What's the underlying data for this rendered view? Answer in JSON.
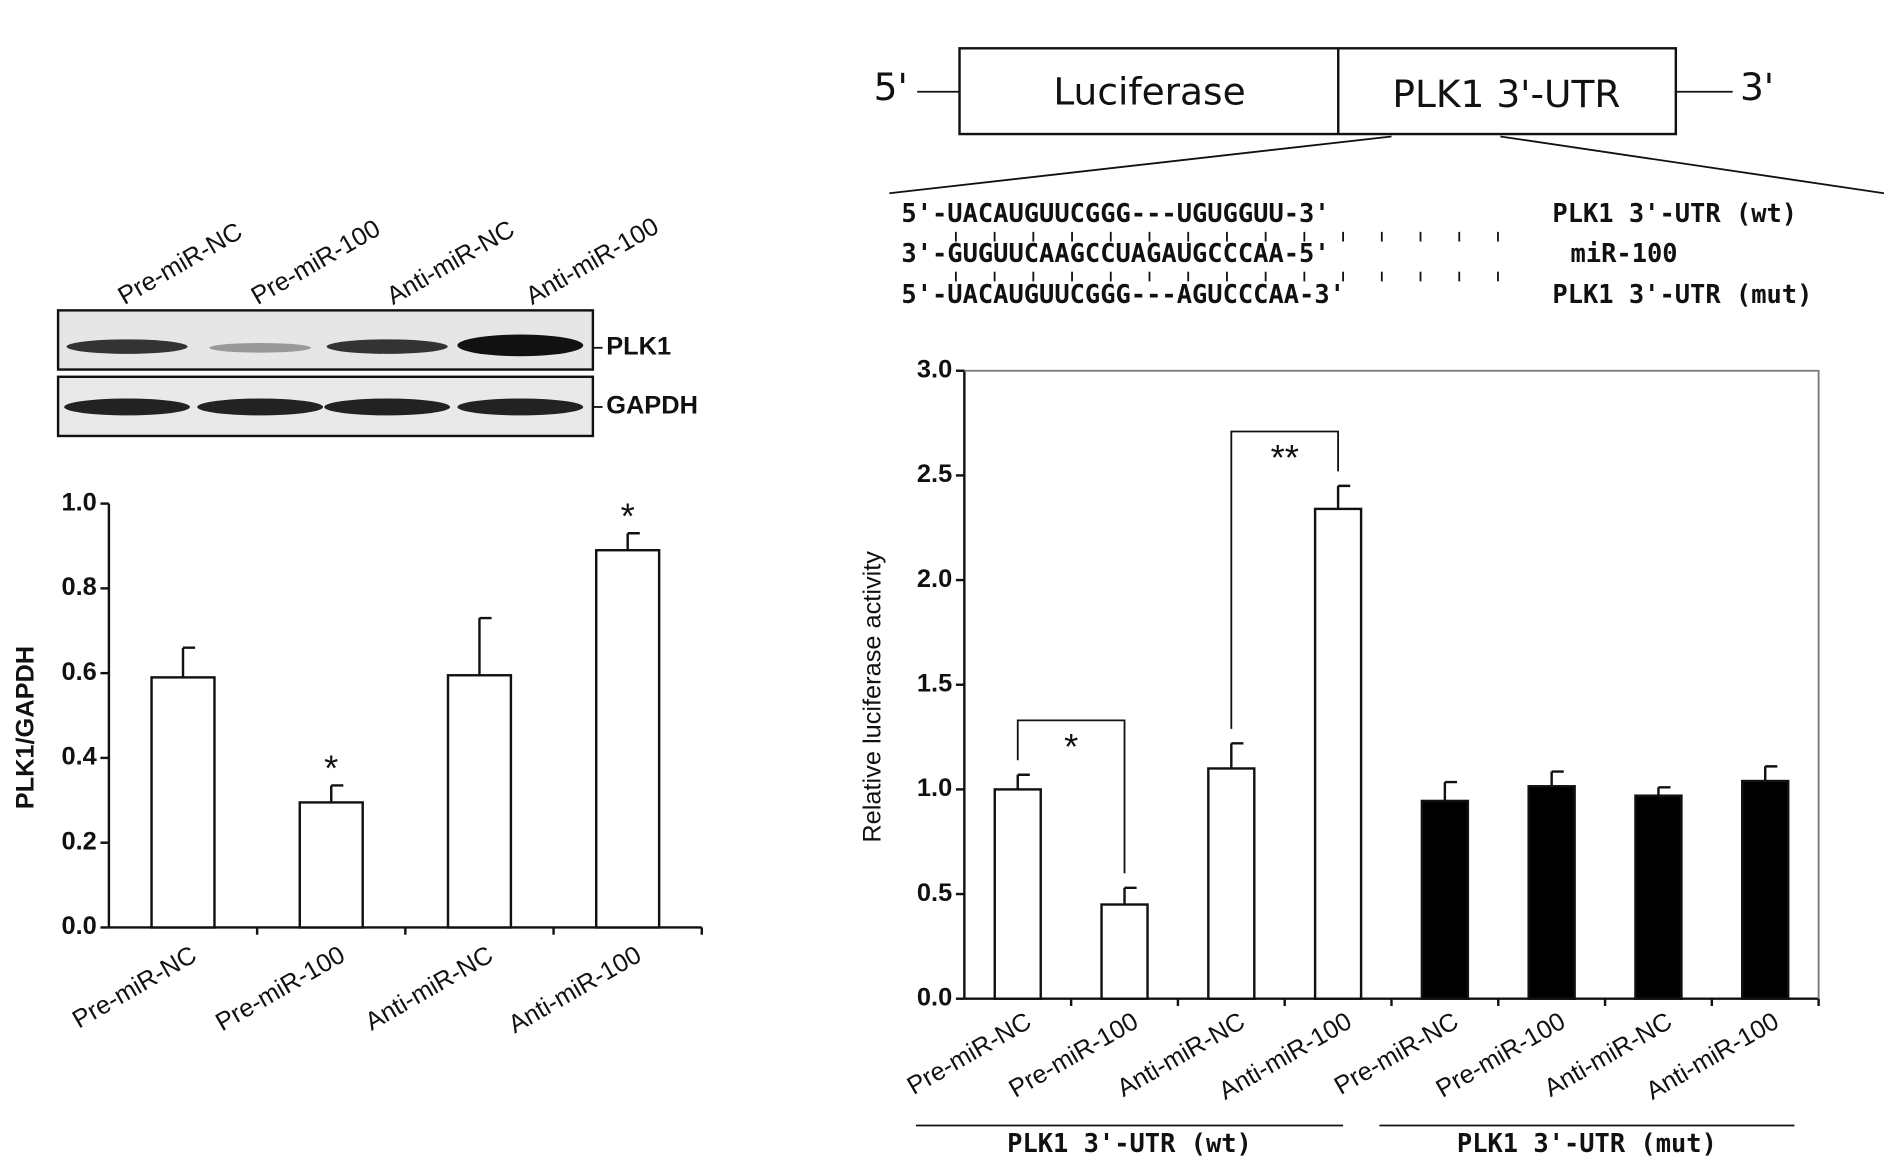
{
  "chart_data": [
    {
      "type": "bar",
      "ylabel": "PLK1/GAPDH",
      "categories": [
        "Pre-miR-NC",
        "Pre-miR-100",
        "Anti-miR-NC",
        "Anti-miR-100"
      ],
      "values": [
        0.59,
        0.295,
        0.595,
        0.89
      ],
      "errors": [
        0.07,
        0.04,
        0.135,
        0.04
      ],
      "colors": [
        "#ffffff",
        "#ffffff",
        "#ffffff",
        "#ffffff"
      ],
      "markers": [
        null,
        "*",
        null,
        "*"
      ],
      "ylim": [
        0,
        1
      ],
      "yticks": [
        {
          "value": 0,
          "label": "0.0"
        },
        0.2,
        0.4,
        0.6,
        0.8,
        {
          "value": 1,
          "label": "1.0"
        }
      ]
    },
    {
      "type": "bar",
      "ylabel": "Relative luciferase activity",
      "categories": [
        "Pre-miR-NC",
        "Pre-miR-100",
        "Anti-miR-NC",
        "Anti-miR-100",
        "Pre-miR-NC",
        "Pre-miR-100",
        "Anti-miR-NC",
        "Anti-miR-100"
      ],
      "values": [
        1.0,
        0.45,
        1.1,
        2.34,
        0.945,
        1.015,
        0.97,
        1.04
      ],
      "errors": [
        0.07,
        0.08,
        0.12,
        0.11,
        0.09,
        0.07,
        0.04,
        0.07
      ],
      "colors": [
        "#ffffff",
        "#ffffff",
        "#ffffff",
        "#ffffff",
        "#000000",
        "#000000",
        "#000000",
        "#000000"
      ],
      "comparisons": [
        {
          "from": 0,
          "to": 1,
          "label": "*"
        },
        {
          "from": 2,
          "to": 3,
          "label": "**"
        }
      ],
      "groups": [
        {
          "label": "PLK1 3'-UTR (wt)",
          "from": 0,
          "to": 3
        },
        {
          "label": "PLK1 3'-UTR (mut)",
          "from": 4,
          "to": 7
        }
      ],
      "ylim": [
        0,
        3
      ],
      "yticks": [
        {
          "value": 0,
          "label": "0.0"
        },
        0.5,
        {
          "value": 1,
          "label": "1.0"
        },
        1.5,
        {
          "value": 2,
          "label": "2.0"
        },
        2.5,
        {
          "value": 3,
          "label": "3.0"
        }
      ]
    }
  ],
  "blot": {
    "lanes": [
      "Pre-miR-NC",
      "Pre-miR-100",
      "Anti-miR-NC",
      "Anti-miR-100"
    ],
    "bands": [
      "PLK1",
      "GAPDH"
    ]
  },
  "construct": {
    "five_prime": "5'",
    "reporter": "Luciferase",
    "utr": "PLK1 3'-UTR",
    "three_prime": "3'",
    "sequences": [
      {
        "seq": "5'-UACAUGUUCGGG---UGUGGUU-3'",
        "label": "PLK1 3'-UTR (wt)"
      },
      {
        "seq": "3'-GUGUUCAAGCCUAGAUGCCCAA-5'",
        "label": "miR-100"
      },
      {
        "seq": "5'-UACAUGUUCGGG---AGUCCCAA-3'",
        "label": "PLK1 3'-UTR (mut)"
      }
    ]
  }
}
